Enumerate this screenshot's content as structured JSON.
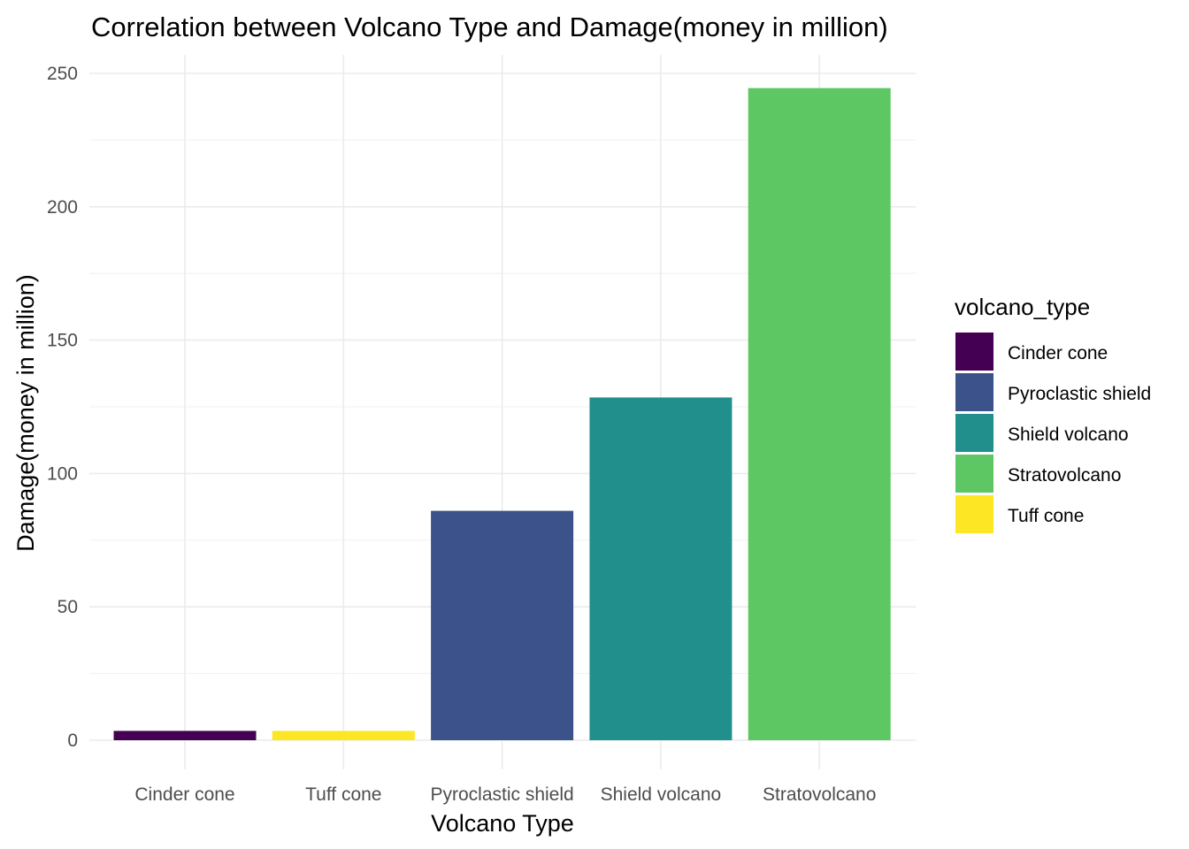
{
  "chart_data": {
    "type": "bar",
    "title": "Correlation between Volcano Type and Damage(money in million)",
    "xlabel": "Volcano Type",
    "ylabel": "Damage(money in million)",
    "categories": [
      "Cinder cone",
      "Tuff cone",
      "Pyroclastic shield",
      "Shield volcano",
      "Stratovolcano"
    ],
    "values": [
      3.5,
      3.5,
      86,
      128.5,
      244.5
    ],
    "colors": [
      "#440154",
      "#fde725",
      "#3b528b",
      "#21908c",
      "#5dc863"
    ],
    "ylim": [
      0,
      250
    ],
    "yticks": [
      "0",
      "50",
      "100",
      "150",
      "200",
      "250"
    ],
    "grid": true,
    "legend": {
      "title": "volcano_type",
      "position": "right",
      "entries": [
        {
          "label": "Cinder cone",
          "color": "#440154"
        },
        {
          "label": "Pyroclastic shield",
          "color": "#3b528b"
        },
        {
          "label": "Shield volcano",
          "color": "#21908c"
        },
        {
          "label": "Stratovolcano",
          "color": "#5dc863"
        },
        {
          "label": "Tuff cone",
          "color": "#fde725"
        }
      ]
    }
  }
}
